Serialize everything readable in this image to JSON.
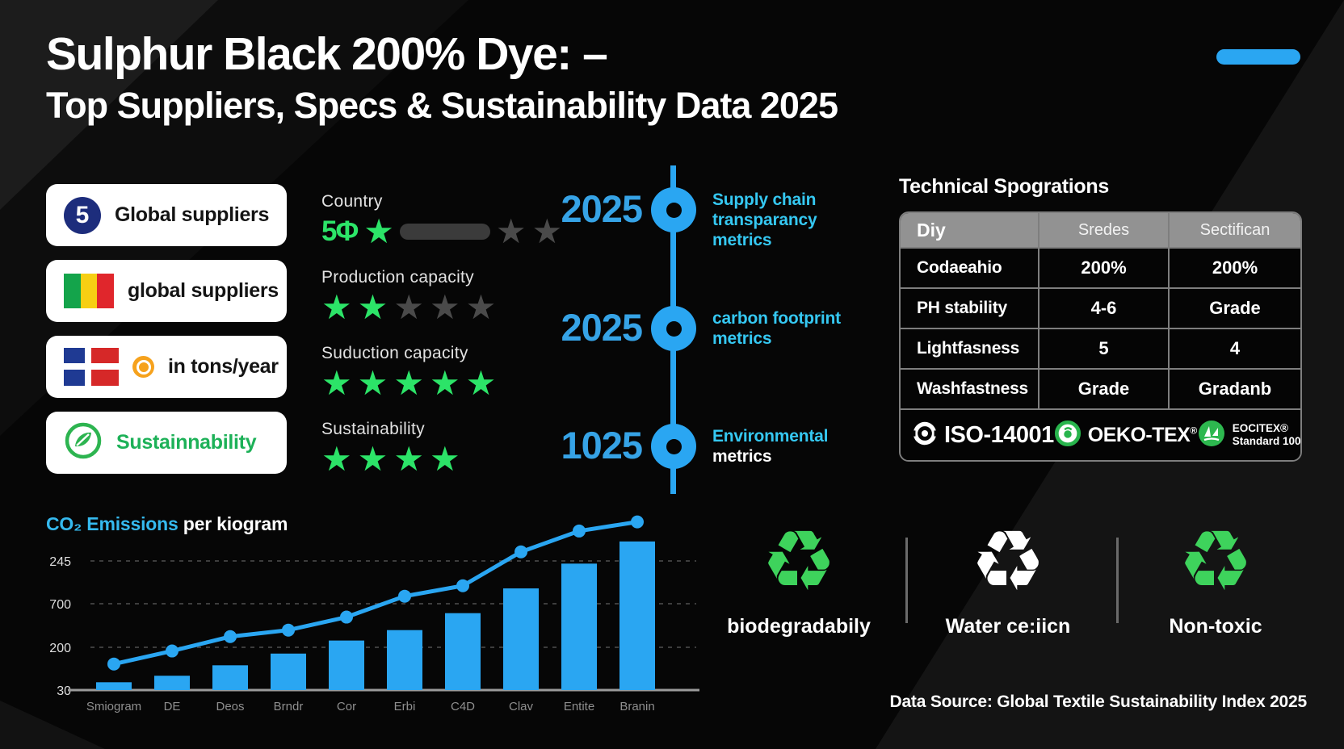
{
  "header": {
    "title_line1": "Sulphur Black 200% Dye: –",
    "title_line2": "Top Suppliers, Specs & Sustainability Data 2025"
  },
  "accent_colors": {
    "blue": "#2aa6f2",
    "cyan": "#35c8f2",
    "green_star": "#2ce468",
    "recycle_green": "#3ed35c",
    "navy_badge": "#1d2d7c",
    "orange_badge": "#f6a21d"
  },
  "supplier_cards": [
    {
      "icon": "number-5-badge",
      "badge_text": "5",
      "label": "Global suppliers",
      "label_color": "#141414"
    },
    {
      "icon": "mali-flag",
      "label": "global suppliers",
      "label_color": "#141414"
    },
    {
      "icon": "cross-flag",
      "extra_icon": "orange-ring-icon",
      "label": "in tons/year",
      "label_color": "#141414"
    },
    {
      "icon": "leaf-circle-icon",
      "label": "Sustainnability",
      "label_color": "#1db158"
    }
  ],
  "ratings": [
    {
      "label": "Country",
      "prefix": "5Φ",
      "green_stars": 1,
      "gray_stars": 2,
      "smear": true
    },
    {
      "label": "Production capacity",
      "green_stars": 2,
      "gray_stars": 3,
      "smear": false
    },
    {
      "label": "Suduction capacity",
      "green_stars": 5,
      "gray_stars": 0,
      "smear": false
    },
    {
      "label": "Sustainability",
      "green_stars": 4,
      "gray_stars": 0,
      "smear": false
    }
  ],
  "timeline": {
    "items": [
      {
        "year": "2025",
        "lines": [
          {
            "text": "Supply chain transparancy",
            "color": "cyan"
          },
          {
            "text": "metrics",
            "color": "cyan"
          }
        ]
      },
      {
        "year": "2025",
        "lines": [
          {
            "text": "carbon footprint",
            "color": "cyan"
          },
          {
            "text": "metrics",
            "color": "cyan"
          }
        ]
      },
      {
        "year": "1025",
        "lines": [
          {
            "text": "Environmental",
            "color": "cyan"
          },
          {
            "text": "metrics",
            "color": "white"
          }
        ]
      }
    ]
  },
  "tech": {
    "title": "Technical Spogrations",
    "headers": [
      "Diy",
      "Sredes",
      "Sectifican"
    ],
    "rows": [
      [
        "Codaeahio",
        "200%",
        "200%"
      ],
      [
        "PH stability",
        "4-6",
        "Grade"
      ],
      [
        "Lightfasness",
        "5",
        "4"
      ],
      [
        "Washfastness",
        "Grade",
        "Gradanb"
      ]
    ],
    "certifications": [
      {
        "icon": "iso-target-icon",
        "text": "ISO-14001",
        "size": "big"
      },
      {
        "icon": "oeko-ring-icon",
        "text": "OEKO-TEX",
        "sup": "®",
        "size": "mid"
      },
      {
        "icon": "ecotex-leaf-icon",
        "line1": "EOCITEX®",
        "line2": "Standard 100",
        "size": "small"
      }
    ]
  },
  "chart_data": {
    "type": "bar",
    "title_accent": "CO₂ Emissions",
    "title_rest": " per kiogram",
    "categories": [
      "Smiogram",
      "DE",
      "Deos",
      "Brndr",
      "Cor",
      "Erbi",
      "C4D",
      "Clav",
      "Entite",
      "Branin"
    ],
    "series": [
      {
        "name": "co2-bars",
        "type": "bar",
        "values": [
          6,
          11,
          19,
          28,
          38,
          46,
          59,
          78,
          97,
          114
        ]
      },
      {
        "name": "trend-line",
        "type": "line",
        "values": [
          20,
          30,
          41,
          46,
          56,
          72,
          80,
          106,
          122,
          129
        ]
      }
    ],
    "y_tick_labels_top_to_bottom": [
      "245",
      "700",
      "200",
      "30"
    ],
    "ylim": [
      0,
      130
    ],
    "grid": "dashed-horizontal",
    "legend": "none",
    "bar_color": "#2aa6f2",
    "line_color": "#2aa6f2"
  },
  "features": {
    "items": [
      {
        "icon": "recycle-icon",
        "color": "#3ed35c",
        "label": "biodegradabily"
      },
      {
        "icon": "recycle-icon",
        "color": "#ffffff",
        "label": "Water ce:iicn"
      },
      {
        "icon": "recycle-icon",
        "color": "#3ed35c",
        "label": "Non-toxic"
      }
    ]
  },
  "footer": {
    "data_source": "Data Source: Global Textile Sustainability Index 2025"
  }
}
